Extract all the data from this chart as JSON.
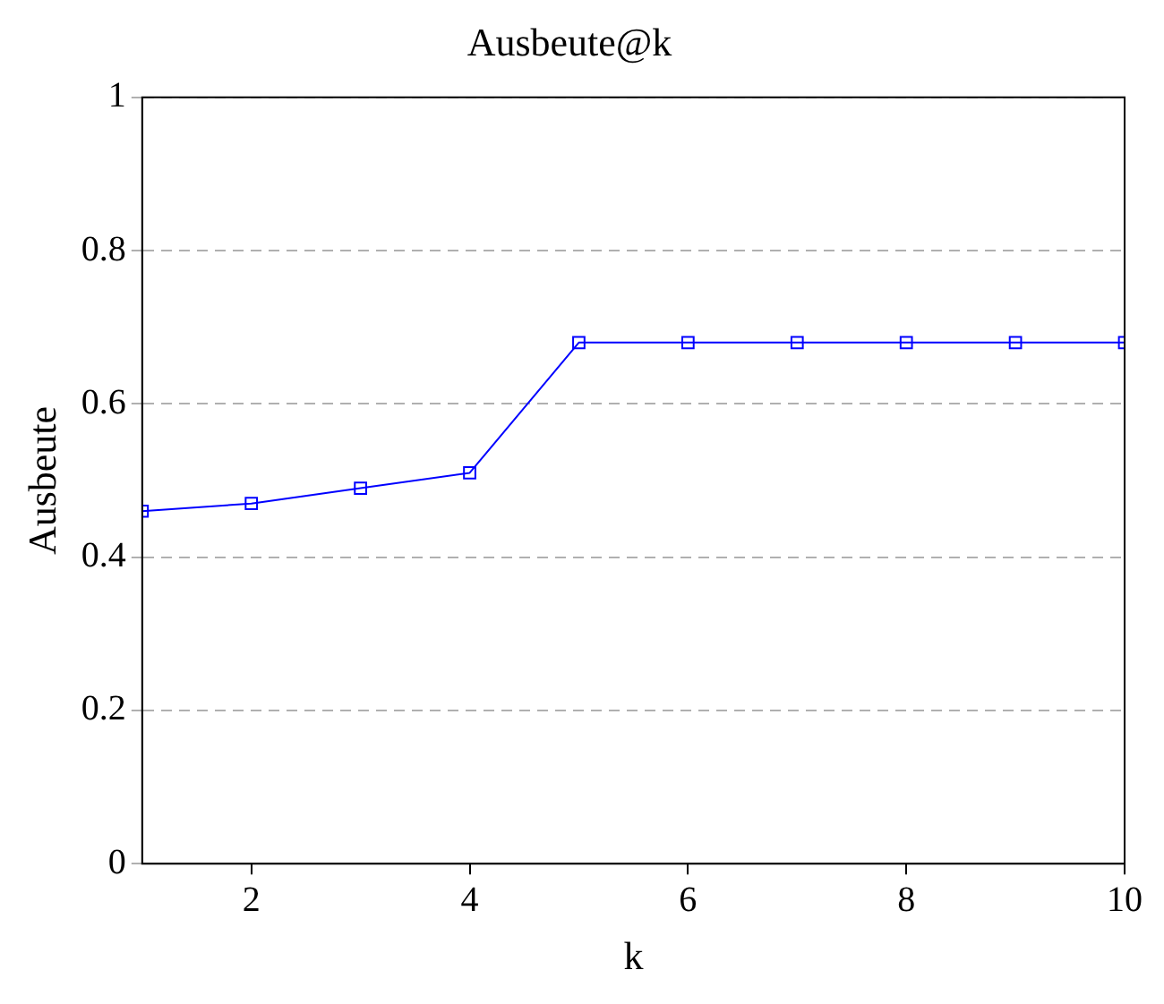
{
  "chart_data": {
    "type": "line",
    "title": "Ausbeute@k",
    "xlabel": "k",
    "ylabel": "Ausbeute",
    "x": [
      1,
      2,
      3,
      4,
      5,
      6,
      7,
      8,
      9,
      10
    ],
    "series": [
      {
        "color": "#0000ff",
        "values": [
          0.46,
          0.47,
          0.49,
          0.51,
          0.68,
          0.68,
          0.68,
          0.68,
          0.68,
          0.68
        ]
      }
    ],
    "xlim": [
      1,
      10
    ],
    "xticks": [
      2,
      4,
      6,
      8,
      10
    ],
    "ylim": [
      0,
      1
    ],
    "yticks": [
      0,
      0.2,
      0.4,
      0.6,
      0.8,
      1
    ],
    "grid": "y",
    "line_style": "solid",
    "marker": "square",
    "legend": false
  }
}
